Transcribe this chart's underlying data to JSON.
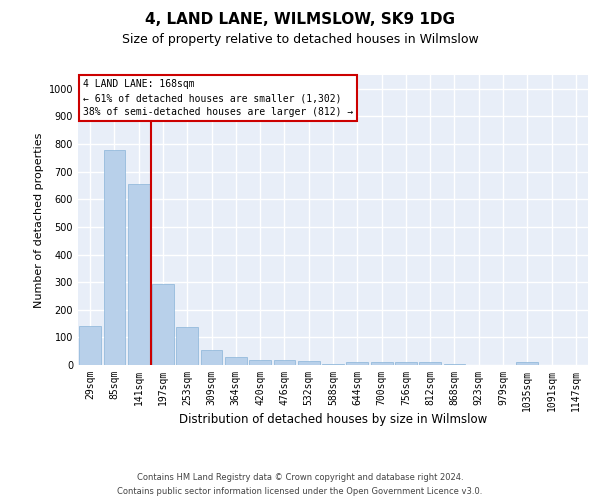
{
  "title": "4, LAND LANE, WILMSLOW, SK9 1DG",
  "subtitle": "Size of property relative to detached houses in Wilmslow",
  "xlabel": "Distribution of detached houses by size in Wilmslow",
  "ylabel": "Number of detached properties",
  "categories": [
    "29sqm",
    "85sqm",
    "141sqm",
    "197sqm",
    "253sqm",
    "309sqm",
    "364sqm",
    "420sqm",
    "476sqm",
    "532sqm",
    "588sqm",
    "644sqm",
    "700sqm",
    "756sqm",
    "812sqm",
    "868sqm",
    "923sqm",
    "979sqm",
    "1035sqm",
    "1091sqm",
    "1147sqm"
  ],
  "values": [
    140,
    778,
    655,
    295,
    138,
    55,
    28,
    18,
    18,
    13,
    5,
    10,
    10,
    10,
    10,
    5,
    0,
    0,
    10,
    0,
    0
  ],
  "bar_color": "#b8d0ea",
  "bar_edgecolor": "#8ab4d8",
  "plot_bg_color": "#e8eef8",
  "grid_color": "#ffffff",
  "red_line_x": 2.5,
  "annotation_line1": "4 LAND LANE: 168sqm",
  "annotation_line2": "← 61% of detached houses are smaller (1,302)",
  "annotation_line3": "38% of semi-detached houses are larger (812) →",
  "ylim": [
    0,
    1050
  ],
  "yticks": [
    0,
    100,
    200,
    300,
    400,
    500,
    600,
    700,
    800,
    900,
    1000
  ],
  "footer1": "Contains HM Land Registry data © Crown copyright and database right 2024.",
  "footer2": "Contains public sector information licensed under the Open Government Licence v3.0.",
  "title_fontsize": 11,
  "subtitle_fontsize": 9,
  "tick_fontsize": 7,
  "ylabel_fontsize": 8,
  "xlabel_fontsize": 8.5,
  "footer_fontsize": 6,
  "annot_fontsize": 7
}
